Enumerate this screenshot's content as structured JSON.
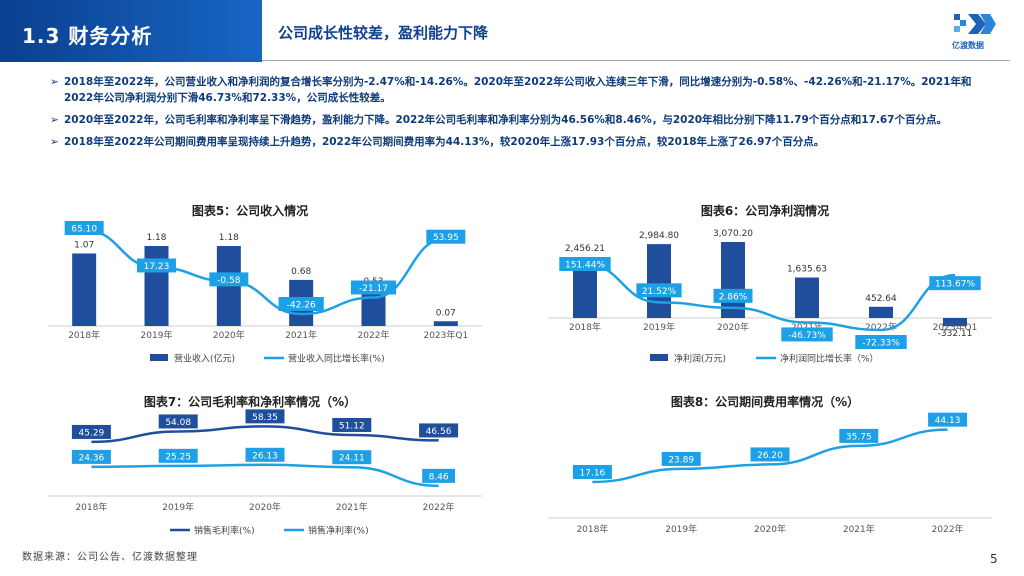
{
  "header": {
    "section_title": "1.3 财务分析",
    "subtitle": "公司成长性较差，盈利能力下降",
    "logo_text": "亿渡数据"
  },
  "bullets": [
    "2018年至2022年，公司营业收入和净利润的复合增长率分别为-2.47%和-14.26%。2020年至2022年公司收入连续三年下滑，同比增速分别为-0.58%、-42.26%和-21.17%。2021年和2022年公司净利润分别下滑46.73%和72.33%，公司成长性较差。",
    "2020年至2022年，公司毛利率和净利率呈下滑趋势，盈利能力下降。2022年公司毛利率和净利率分别为46.56%和8.46%，与2020年相比分别下降11.79个百分点和17.67个百分点。",
    "2018年至2022年公司期间费用率呈现持续上升趋势，2022年公司期间费用率为44.13%，较2020年上涨17.93个百分点，较2018年上涨了26.97个百分点。"
  ],
  "bullet_marker": "➢",
  "footer": {
    "source": "数据来源：公司公告、亿渡数据整理",
    "page": "5"
  },
  "colors": {
    "dark_blue": "#1f4e9c",
    "light_blue": "#1ea0e6",
    "header": "#0b3f8f"
  },
  "chart_data": [
    {
      "id": "chart5",
      "title": "图表5：公司收入情况",
      "type": "bar+line",
      "categories": [
        "2018年",
        "2019年",
        "2020年",
        "2021年",
        "2022年",
        "2023年Q1"
      ],
      "bar": {
        "name": "营业收入(亿元)",
        "values": [
          1.07,
          1.18,
          1.18,
          0.68,
          0.53,
          0.07
        ],
        "labels": [
          "1.07",
          "1.18",
          "1.18",
          "0.68",
          "0.53",
          "0.07"
        ]
      },
      "line": {
        "name": "营业收入同比增长率(%)",
        "values": [
          65.1,
          17.23,
          -0.58,
          -42.26,
          -21.17,
          53.95
        ],
        "labels": [
          "65.10",
          "17.23",
          "-0.58",
          "-42.26",
          "-21.17",
          "53.95"
        ]
      }
    },
    {
      "id": "chart6",
      "title": "图表6：公司净利润情况",
      "type": "bar+line",
      "categories": [
        "2018年",
        "2019年",
        "2020年",
        "2021年",
        "2022年",
        "2023年Q1"
      ],
      "bar": {
        "name": "净利润(万元)",
        "values": [
          2456.21,
          2984.8,
          3070.2,
          1635.63,
          452.64,
          -332.11
        ],
        "labels": [
          "2,456.21",
          "2,984.80",
          "3,070.20",
          "1,635.63",
          "452.64",
          "-332.11"
        ]
      },
      "line": {
        "name": "净利润同比增长率（%）",
        "values": [
          151.44,
          21.52,
          2.86,
          -46.73,
          -72.33,
          113.67
        ],
        "labels": [
          "151.44%",
          "21.52%",
          "2.86%",
          "-46.73%",
          "-72.33%",
          "113.67%"
        ]
      }
    },
    {
      "id": "chart7",
      "title": "图表7：公司毛利率和净利率情况（%）",
      "type": "line",
      "categories": [
        "2018年",
        "2019年",
        "2020年",
        "2021年",
        "2022年"
      ],
      "series": [
        {
          "name": "销售毛利率(%)",
          "values": [
            45.29,
            54.08,
            58.35,
            51.12,
            46.56
          ],
          "labels": [
            "45.29",
            "54.08",
            "58.35",
            "51.12",
            "46.56"
          ]
        },
        {
          "name": "销售净利率(%)",
          "values": [
            24.36,
            25.25,
            26.13,
            24.11,
            8.46
          ],
          "labels": [
            "24.36",
            "25.25",
            "26.13",
            "24.11",
            "8.46"
          ]
        }
      ]
    },
    {
      "id": "chart8",
      "title": "图表8：公司期间费用率情况（%）",
      "type": "line",
      "categories": [
        "2018年",
        "2019年",
        "2020年",
        "2021年",
        "2022年"
      ],
      "series": [
        {
          "name": "",
          "values": [
            17.16,
            23.89,
            26.2,
            35.75,
            44.13
          ],
          "labels": [
            "17.16",
            "23.89",
            "26.20",
            "35.75",
            "44.13"
          ]
        }
      ]
    }
  ]
}
